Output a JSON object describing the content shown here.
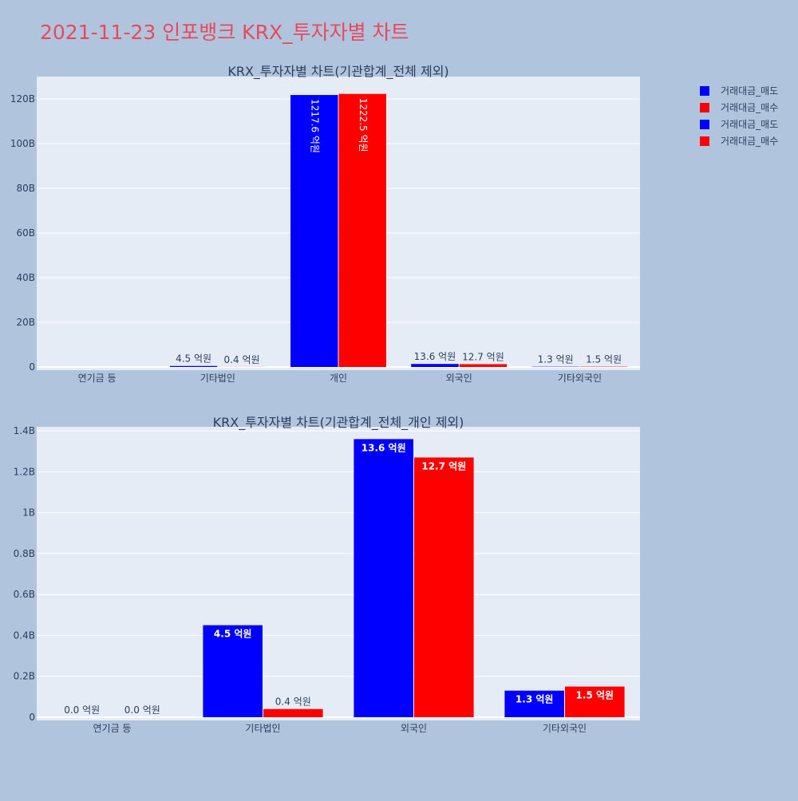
{
  "page": {
    "title": "2021-11-23 인포뱅크 KRX_투자자별 차트",
    "title_color": "#e8495b",
    "background": "#b0c4de",
    "plot_background": "#e5ecf6"
  },
  "legend": {
    "placement": "top-right",
    "items": [
      {
        "label": "거래대금_매도",
        "color": "#0000ff"
      },
      {
        "label": "거래대금_매수",
        "color": "#ff0000"
      },
      {
        "label": "거래대금_매도",
        "color": "#0000ff"
      },
      {
        "label": "거래대금_매수",
        "color": "#ff0000"
      }
    ]
  },
  "chart_data": [
    {
      "type": "bar",
      "title": "KRX_투자자별 차트(기관합계_전체 제외)",
      "categories": [
        "연기금 등",
        "기타법인",
        "개인",
        "외국인",
        "기타외국인"
      ],
      "ylim": [
        0,
        130
      ],
      "yticks": [
        0,
        20,
        40,
        60,
        80,
        100,
        120
      ],
      "ytick_labels": [
        "0",
        "20B",
        "40B",
        "60B",
        "80B",
        "100B",
        "120B"
      ],
      "grid": true,
      "series": [
        {
          "name": "거래대금_매도",
          "color": "#0000ff",
          "values": [
            0.0,
            0.45,
            121.76,
            1.36,
            0.13
          ],
          "labels": [
            "",
            "4.5 억원",
            "1217.6 억원",
            "13.6 억원",
            "1.3 억원"
          ]
        },
        {
          "name": "거래대금_매수",
          "color": "#ff0000",
          "values": [
            0.0,
            0.04,
            122.25,
            1.27,
            0.15
          ],
          "labels": [
            "",
            "0.4 억원",
            "1222.5 억원",
            "12.7 억원",
            "1.5 억원"
          ]
        }
      ]
    },
    {
      "type": "bar",
      "title": "KRX_투자자별 차트(기관합계_전체_개인 제외)",
      "categories": [
        "연기금 등",
        "기타법인",
        "외국인",
        "기타외국인"
      ],
      "ylim": [
        0,
        1.42
      ],
      "yticks": [
        0,
        0.2,
        0.4,
        0.6,
        0.8,
        1.0,
        1.2,
        1.4
      ],
      "ytick_labels": [
        "0",
        "0.2B",
        "0.4B",
        "0.6B",
        "0.8B",
        "1B",
        "1.2B",
        "1.4B"
      ],
      "grid": true,
      "series": [
        {
          "name": "거래대금_매도",
          "color": "#0000ff",
          "values": [
            0.0,
            0.45,
            1.36,
            0.13
          ],
          "labels": [
            "0.0 억원",
            "4.5 억원",
            "13.6 억원",
            "1.3 억원"
          ]
        },
        {
          "name": "거래대금_매수",
          "color": "#ff0000",
          "values": [
            0.0,
            0.04,
            1.27,
            0.15
          ],
          "labels": [
            "0.0 억원",
            "0.4 억원",
            "12.7 억원",
            "1.5 억원"
          ]
        }
      ]
    }
  ]
}
